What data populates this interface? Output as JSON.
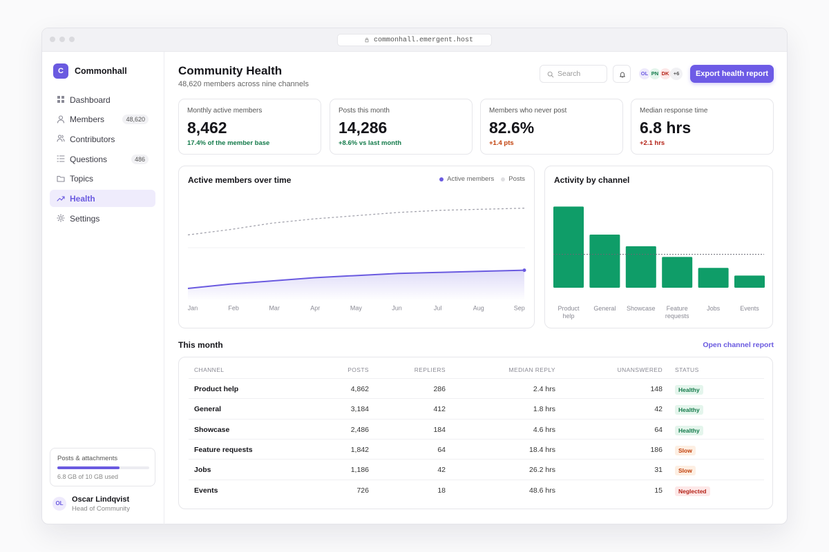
{
  "browser": {
    "url": "commonhall.emergent.host"
  },
  "sidebar": {
    "brand_initial": "C",
    "brand": "Commonhall",
    "nav": [
      {
        "label": "Dashboard"
      },
      {
        "label": "Members",
        "badge": "48,620"
      },
      {
        "label": "Contributors"
      },
      {
        "label": "Questions",
        "badge": "486"
      },
      {
        "label": "Topics"
      },
      {
        "label": "Health",
        "active": true
      },
      {
        "label": "Settings"
      }
    ],
    "storage": {
      "title": "Posts & attachments",
      "used": 6.8,
      "total": 10,
      "caption": "6.8 GB of 10 GB used"
    },
    "user": {
      "initials": "OL",
      "name": "Oscar Lindqvist",
      "role": "Head of Community"
    }
  },
  "header": {
    "title": "Community Health",
    "subtitle": "48,620 members across nine channels",
    "search_placeholder": "Search",
    "avatars": [
      "OL",
      "PN",
      "DK"
    ],
    "more": "+6",
    "button": "Export health report"
  },
  "kpis": [
    {
      "label": "Monthly active members",
      "value": "8,462",
      "delta": "17.4% of the member base",
      "tone": "good"
    },
    {
      "label": "Posts this month",
      "value": "14,286",
      "delta": "+8.6% vs last month",
      "tone": "good"
    },
    {
      "label": "Members who never post",
      "value": "82.6%",
      "delta": "+1.4 pts",
      "tone": "warn"
    },
    {
      "label": "Median response time",
      "value": "6.8 hrs",
      "delta": "+2.1 hrs",
      "tone": "bad"
    }
  ],
  "chart_data": [
    {
      "type": "line",
      "title": "Active members over time",
      "categories": [
        "Jan",
        "Feb",
        "Mar",
        "Apr",
        "May",
        "Jun",
        "Jul",
        "Aug",
        "Sep"
      ],
      "series": [
        {
          "name": "Active members",
          "color": "#6a5ae0",
          "values": [
            11,
            15,
            18,
            21,
            23,
            25,
            26,
            27,
            28
          ]
        },
        {
          "name": "Posts",
          "color": "#a3a3ad",
          "dashed": true,
          "values": [
            61,
            66,
            72,
            76,
            79,
            82,
            84,
            85,
            86
          ]
        }
      ],
      "ylim": [
        0,
        100
      ]
    },
    {
      "type": "bar",
      "title": "Activity by channel",
      "categories": [
        "Product help",
        "General",
        "Showcase",
        "Feature requests",
        "Jobs",
        "Events"
      ],
      "values": [
        4862,
        3184,
        2486,
        1842,
        1186,
        726
      ],
      "color": "#0f9d68",
      "ylim": [
        0,
        5000
      ],
      "reference_value": 2000
    }
  ],
  "table": {
    "title": "This month",
    "link": "Open channel report",
    "columns": [
      "CHANNEL",
      "POSTS",
      "REPLIERS",
      "MEDIAN REPLY",
      "UNANSWERED",
      "STATUS"
    ],
    "rows": [
      [
        "Product help",
        "4,862",
        "286",
        "2.4 hrs",
        "148",
        "Healthy"
      ],
      [
        "General",
        "3,184",
        "412",
        "1.8 hrs",
        "42",
        "Healthy"
      ],
      [
        "Showcase",
        "2,486",
        "184",
        "4.6 hrs",
        "64",
        "Healthy"
      ],
      [
        "Feature requests",
        "1,842",
        "64",
        "18.4 hrs",
        "186",
        "Slow"
      ],
      [
        "Jobs",
        "1,186",
        "42",
        "26.2 hrs",
        "31",
        "Slow"
      ],
      [
        "Events",
        "726",
        "18",
        "48.6 hrs",
        "15",
        "Neglected"
      ]
    ],
    "status_tones": [
      "good",
      "good",
      "good",
      "warn",
      "warn",
      "bad"
    ]
  }
}
